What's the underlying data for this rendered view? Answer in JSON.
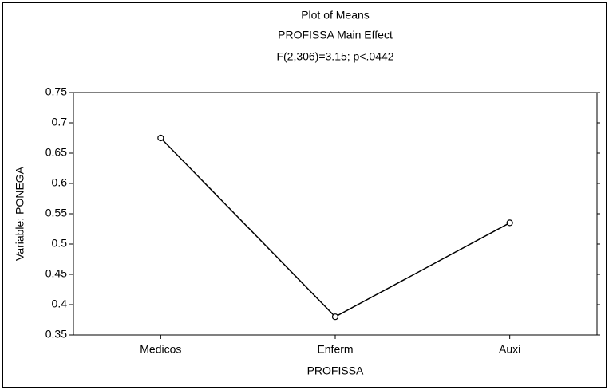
{
  "chart_data": {
    "type": "line",
    "title": "Plot of Means",
    "subtitle": "PROFISSA Main Effect",
    "annotation": "F(2,306)=3.15; p<.0442",
    "x_label": "PROFISSA",
    "y_label": "Variable: PONEGA",
    "categories": [
      "Medicos",
      "Enferm",
      "Auxi"
    ],
    "values": [
      0.675,
      0.38,
      0.535
    ],
    "color": "#000000",
    "ylim": [
      0.35,
      0.75
    ],
    "yticks": [
      0.35,
      0.4,
      0.45,
      0.5,
      0.55,
      0.6,
      0.65,
      0.7,
      0.75
    ],
    "grid": false
  }
}
